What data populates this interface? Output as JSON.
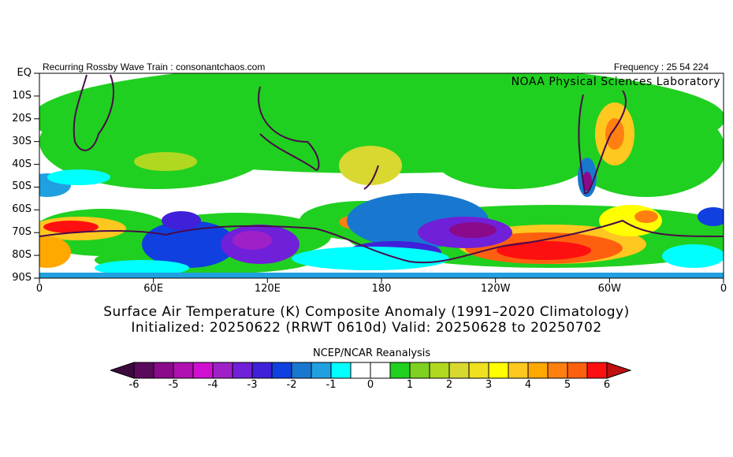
{
  "header": {
    "left": "Recurring Rossby Wave Train : consonantchaos.com",
    "right": "Frequency : 25 54 224"
  },
  "credit": "NOAA Physical Sciences Laboratory",
  "y_axis": {
    "labels": [
      "EQ",
      "10S",
      "20S",
      "30S",
      "40S",
      "50S",
      "60S",
      "70S",
      "80S",
      "90S"
    ]
  },
  "x_axis": {
    "labels": [
      "0",
      "60E",
      "120E",
      "180",
      "120W",
      "60W",
      "0"
    ]
  },
  "title": {
    "line1": "Surface Air Temperature (K) Composite Anomaly (1991–2020 Climatology)",
    "line2": "Initialized: 20250622 (RRWT 0610d) Valid: 20250628 to 20250702"
  },
  "colorbar": {
    "label": "NCEP/NCAR Reanalysis",
    "ticks": [
      "-6",
      "-5",
      "-4",
      "-3",
      "-2",
      "-1",
      "0",
      "1",
      "2",
      "3",
      "4",
      "5",
      "6"
    ],
    "min": -6,
    "max": 6,
    "step": 0.5,
    "under_color": "#3c0a3c",
    "over_color": "#c01010",
    "colors": [
      "#5a0a5a",
      "#8b0a8b",
      "#b010b0",
      "#d010d0",
      "#a020c8",
      "#7020d8",
      "#4020d8",
      "#1040e0",
      "#1878d0",
      "#20a0e0",
      "#00ffff",
      "#ffffff",
      "#ffffff",
      "#20d020",
      "#80d020",
      "#b0d820",
      "#d8d830",
      "#f0e020",
      "#ffff00",
      "#ffc820",
      "#ffa800",
      "#ff8010",
      "#ff6010",
      "#ff1010"
    ]
  }
}
